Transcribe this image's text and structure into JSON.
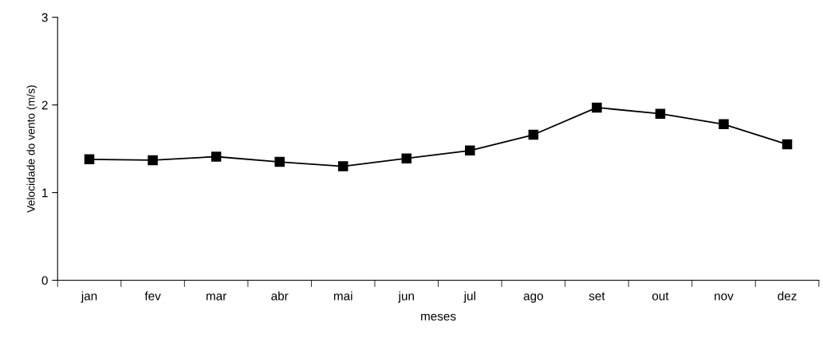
{
  "chart_data": {
    "type": "line",
    "xlabel": "meses",
    "ylabel": "Velocidade do vento (m/s)",
    "categories": [
      "jan",
      "fev",
      "mar",
      "abr",
      "mai",
      "jun",
      "jul",
      "ago",
      "set",
      "out",
      "nov",
      "dez"
    ],
    "series": [
      {
        "color": "#000000",
        "values": [
          1.38,
          1.37,
          1.41,
          1.35,
          1.3,
          1.39,
          1.48,
          1.66,
          1.97,
          1.9,
          1.78,
          1.55
        ]
      }
    ],
    "ylim": [
      0,
      3
    ],
    "yticks": [
      0,
      1,
      2,
      3
    ],
    "grid": false,
    "legend": false,
    "marker": "square",
    "line_style": "solid"
  }
}
